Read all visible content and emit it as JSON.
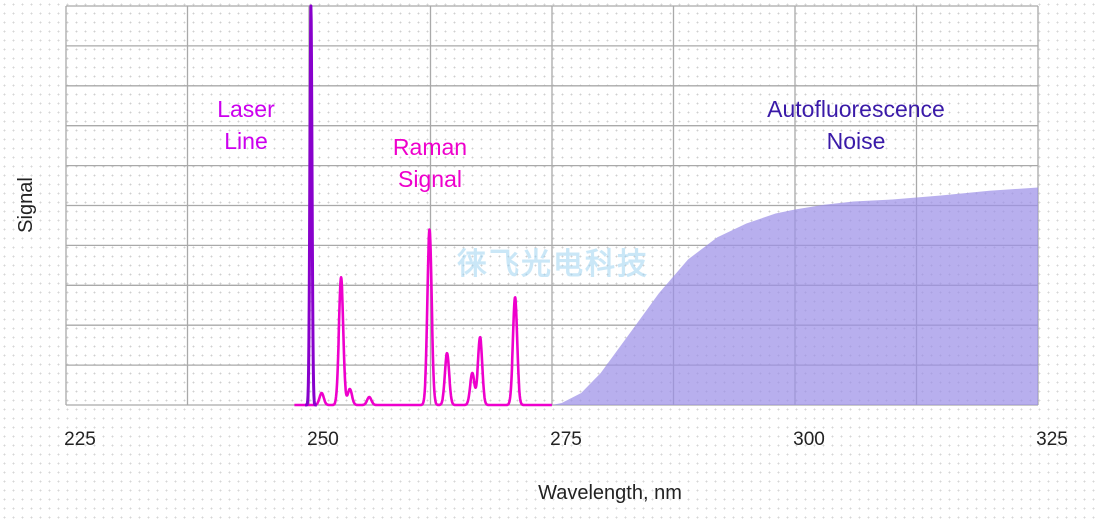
{
  "chart_data": {
    "type": "line",
    "title": "",
    "xlabel": "Wavelength, nm",
    "ylabel": "Signal",
    "xlim": [
      225,
      325
    ],
    "ylim": [
      0,
      100
    ],
    "x_ticks": [
      "225",
      "250",
      "275",
      "300",
      "325"
    ],
    "grid": true,
    "legend": "none",
    "annotations": [
      {
        "key": "laser",
        "lines": [
          "Laser",
          "Line"
        ],
        "color": "#cc00ee"
      },
      {
        "key": "raman",
        "lines": [
          "Raman",
          "Signal"
        ],
        "color": "#ee00cc"
      },
      {
        "key": "auto",
        "lines": [
          "Autofluorescence",
          "Noise"
        ],
        "color": "#3a1aa8"
      }
    ],
    "series": [
      {
        "color": "#8800cc",
        "peaks": [
          {
            "x": 250.2,
            "y": 100
          }
        ]
      },
      {
        "color": "#ee00cc",
        "peaks": [
          {
            "x": 251.3,
            "y": 3
          },
          {
            "x": 253.3,
            "y": 32
          },
          {
            "x": 254.2,
            "y": 4
          },
          {
            "x": 256.2,
            "y": 2
          },
          {
            "x": 262.4,
            "y": 44
          },
          {
            "x": 264.2,
            "y": 13
          },
          {
            "x": 266.8,
            "y": 8
          },
          {
            "x": 267.6,
            "y": 17
          },
          {
            "x": 271.2,
            "y": 27
          }
        ],
        "x_range": [
          248.5,
          275
        ]
      },
      {
        "color": "#9d90e8",
        "type": "area",
        "points": [
          [
            275,
            0
          ],
          [
            276,
            0.5
          ],
          [
            278,
            3
          ],
          [
            280,
            8
          ],
          [
            283,
            18
          ],
          [
            286,
            28
          ],
          [
            289,
            36.5
          ],
          [
            292,
            42
          ],
          [
            295,
            45.5
          ],
          [
            298,
            48
          ],
          [
            300,
            49
          ],
          [
            303,
            50.2
          ],
          [
            306,
            51
          ],
          [
            310,
            51.5
          ],
          [
            315,
            52.5
          ],
          [
            320,
            53.7
          ],
          [
            325,
            54.5
          ]
        ]
      }
    ]
  },
  "watermark": "徕飞光电科技"
}
